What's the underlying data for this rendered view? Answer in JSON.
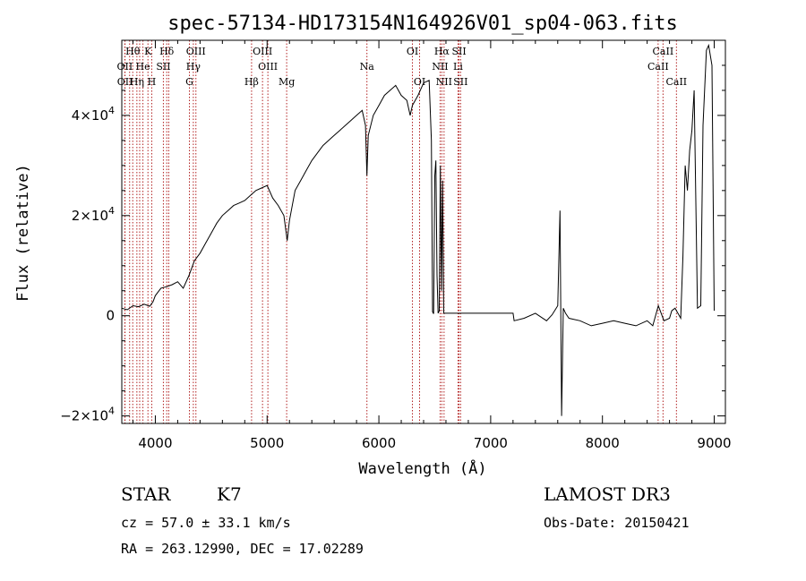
{
  "chart_data": {
    "type": "line",
    "title": "spec-57134-HD173154N164926V01_sp04-063.fits",
    "xlabel": "Wavelength (Å)",
    "ylabel": "Flux (relative)",
    "xlim": [
      3700,
      9100
    ],
    "ylim": [
      -21500,
      55000
    ],
    "xticks": [
      4000,
      5000,
      6000,
      7000,
      8000,
      9000
    ],
    "xtick_labels": [
      "4000",
      "5000",
      "6000",
      "7000",
      "8000",
      "9000"
    ],
    "yticks": [
      -20000,
      0,
      20000,
      40000
    ],
    "ytick_mantissa": [
      "−2",
      "0",
      "2",
      "4"
    ],
    "ytick_has_exp": [
      true,
      false,
      true,
      true
    ],
    "ytick_times": "×10",
    "ytick_exp": "4",
    "grid": false,
    "line_color": "#000000",
    "marker_color": "#b22222",
    "series": [
      {
        "x": [
          3700,
          3750,
          3800,
          3850,
          3900,
          3950,
          3980,
          4000,
          4050,
          4100,
          4150,
          4200,
          4250,
          4300,
          4350,
          4400,
          4450,
          4500,
          4550,
          4600,
          4650,
          4700,
          4750,
          4800,
          4850,
          4900,
          4950,
          5000,
          5050,
          5100,
          5150,
          5180,
          5200,
          5250,
          5300,
          5350,
          5400,
          5450,
          5500,
          5550,
          5600,
          5650,
          5700,
          5750,
          5800,
          5850,
          5880,
          5893,
          5905,
          5950,
          6000,
          6050,
          6100,
          6150,
          6200,
          6250,
          6280,
          6300,
          6350,
          6400,
          6450,
          6470,
          6480,
          6490,
          6500,
          6510,
          6520,
          6530,
          6540,
          6550,
          6560,
          6570,
          6580,
          6600,
          6700,
          6800,
          7000,
          7200,
          7210,
          7300,
          7400,
          7500,
          7550,
          7600,
          7620,
          7635,
          7650,
          7670,
          7700,
          7800,
          7900,
          8000,
          8100,
          8200,
          8300,
          8400,
          8450,
          8500,
          8550,
          8600,
          8620,
          8650,
          8700,
          8720,
          8740,
          8760,
          8780,
          8800,
          8820,
          8850,
          8880,
          8900,
          8930,
          8950,
          8980,
          9000
        ],
        "y": [
          1500,
          1200,
          2000,
          1800,
          2300,
          1900,
          2800,
          4000,
          5500,
          5800,
          6200,
          6800,
          5500,
          8000,
          11000,
          12500,
          14500,
          16500,
          18500,
          20000,
          21000,
          22000,
          22500,
          23000,
          24000,
          25000,
          25500,
          26000,
          23500,
          22000,
          20000,
          15000,
          19000,
          25000,
          27000,
          29000,
          31000,
          32500,
          34000,
          35000,
          36000,
          37000,
          38000,
          39000,
          40000,
          41000,
          38000,
          28000,
          36000,
          40000,
          42000,
          44000,
          45000,
          46000,
          44000,
          43000,
          40000,
          42000,
          44000,
          46500,
          47000,
          35000,
          800,
          400,
          28000,
          31000,
          8000,
          500,
          1000,
          30000,
          5000,
          27000,
          500,
          500,
          500,
          500,
          500,
          500,
          -1000,
          -500,
          500,
          -1000,
          200,
          2000,
          21000,
          -20000,
          1500,
          500,
          -500,
          -1000,
          -2000,
          -1500,
          -1000,
          -1500,
          -2000,
          -1000,
          -2000,
          2000,
          -1000,
          -500,
          1000,
          1500,
          -500,
          12000,
          30000,
          25000,
          33000,
          37000,
          45000,
          1500,
          2000,
          38000,
          53000,
          54000,
          50000,
          1000
        ]
      }
    ],
    "lines_top": [
      {
        "label": "Hθ",
        "x": 3798
      },
      {
        "label": "K",
        "x": 3934
      },
      {
        "label": "Hδ",
        "x": 4102
      },
      {
        "label": "OIII",
        "x": 4363
      },
      {
        "label": "OIII",
        "x": 4959
      },
      {
        "label": "OI",
        "x": 6300
      },
      {
        "label": "Hα",
        "x": 6563
      },
      {
        "label": "SII",
        "x": 6717
      },
      {
        "label": "CaII",
        "x": 8542
      }
    ],
    "lines_mid": [
      {
        "label": "OII",
        "x": 3727
      },
      {
        "label": "He",
        "x": 3889
      },
      {
        "label": "SII",
        "x": 4072
      },
      {
        "label": "Hγ",
        "x": 4340
      },
      {
        "label": "OIII",
        "x": 5007
      },
      {
        "label": "Na",
        "x": 5893
      },
      {
        "label": "NII",
        "x": 6548
      },
      {
        "label": "Li",
        "x": 6708
      },
      {
        "label": "CaII",
        "x": 8498
      }
    ],
    "lines_bot": [
      {
        "label": "OII",
        "x": 3729
      },
      {
        "label": "Hη",
        "x": 3835
      },
      {
        "label": "H",
        "x": 3968
      },
      {
        "label": "G",
        "x": 4305
      },
      {
        "label": "Hβ",
        "x": 4861
      },
      {
        "label": "Mg",
        "x": 5175
      },
      {
        "label": "OI",
        "x": 6364
      },
      {
        "label": "NII",
        "x": 6583
      },
      {
        "label": "SII",
        "x": 6731
      },
      {
        "label": "CaII",
        "x": 8662
      }
    ],
    "extra_line_positions": [
      3770,
      3860,
      4120
    ]
  },
  "info": {
    "obj_class": "STAR",
    "subclass": "K7",
    "cz": "cz = 57.0 ± 33.1 km/s",
    "radec": "RA = 263.12990, DEC =  17.02289",
    "survey": "LAMOST DR3",
    "obs_date": "Obs-Date: 20150421"
  }
}
